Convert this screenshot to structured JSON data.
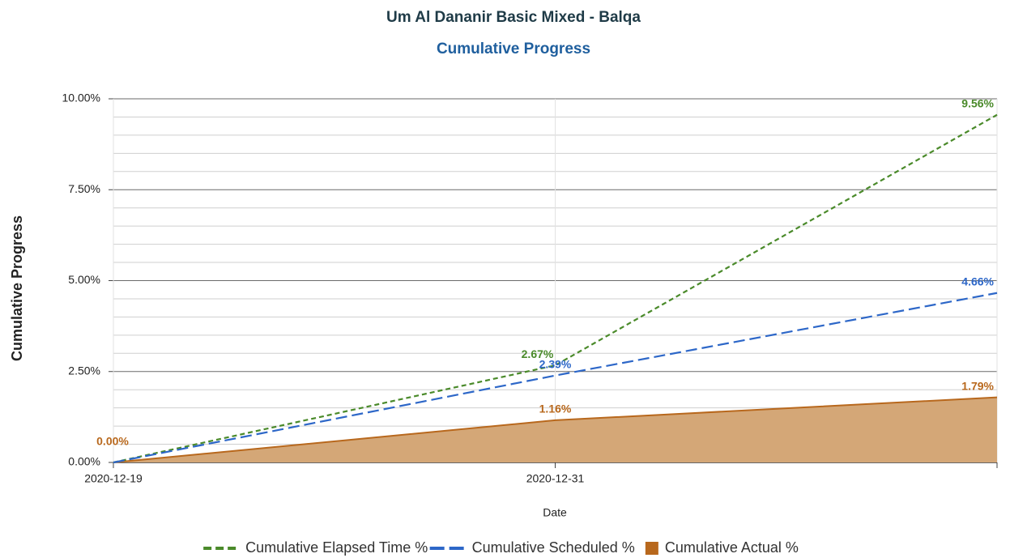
{
  "chart_data": {
    "type": "line",
    "title": "Um Al Dananir Basic Mixed  - Balqa",
    "subtitle": "Cumulative Progress",
    "y_label": "Cumulative Progress",
    "x_label": "Date",
    "categories": [
      "2020-12-19",
      "2020-12-31",
      null
    ],
    "ylim": [
      0,
      10
    ],
    "yticks": [
      {
        "value": 0,
        "label": "0.00%"
      },
      {
        "value": 2.5,
        "label": "2.50%"
      },
      {
        "value": 5,
        "label": "5.00%"
      },
      {
        "value": 7.5,
        "label": "7.50%"
      },
      {
        "value": 10,
        "label": "10.00%"
      }
    ],
    "minor_yticks": [
      0.5,
      1,
      1.5,
      2,
      3,
      3.5,
      4,
      4.5,
      5.5,
      6,
      6.5,
      7,
      8,
      8.5,
      9,
      9.5
    ],
    "grid": true,
    "legend": "bottom",
    "series": [
      {
        "name": "Cumulative Elapsed Time %",
        "color": "#4a8a2a",
        "style": "short-dash",
        "values": [
          0,
          2.67,
          9.56
        ],
        "value_labels": [
          null,
          "2.67%",
          "9.56%"
        ]
      },
      {
        "name": "Cumulative Scheduled %",
        "color": "#2d67c8",
        "style": "long-dash",
        "values": [
          0,
          2.39,
          4.66
        ],
        "value_labels": [
          null,
          "2.39%",
          "4.66%"
        ]
      },
      {
        "name": "Cumulative  Actual %",
        "color": "#b8681d",
        "fill": "#d4a777",
        "style": "area",
        "values": [
          0,
          1.16,
          1.79
        ],
        "value_labels": [
          "0.00%",
          "1.16%",
          "1.79%"
        ]
      }
    ]
  }
}
